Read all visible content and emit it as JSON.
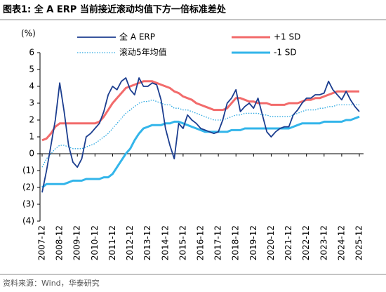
{
  "chart_data": {
    "type": "line",
    "title": "图表1:  全 A ERP 当前接近滚动均值下方一倍标准差处",
    "y_label": "(%)",
    "source": "资料来源：Wind，华泰研究",
    "x": [
      "2007-12",
      "2008-03",
      "2008-06",
      "2008-09",
      "2008-12",
      "2009-03",
      "2009-06",
      "2009-09",
      "2009-12",
      "2010-03",
      "2010-06",
      "2010-09",
      "2010-12",
      "2011-03",
      "2011-06",
      "2011-09",
      "2011-12",
      "2012-03",
      "2012-06",
      "2012-09",
      "2012-12",
      "2013-03",
      "2013-06",
      "2013-09",
      "2013-12",
      "2014-03",
      "2014-06",
      "2014-09",
      "2014-12",
      "2015-03",
      "2015-06",
      "2015-09",
      "2015-12",
      "2016-03",
      "2016-06",
      "2016-09",
      "2016-12",
      "2017-03",
      "2017-06",
      "2017-09",
      "2017-12",
      "2018-03",
      "2018-06",
      "2018-09",
      "2018-12",
      "2019-03",
      "2019-06",
      "2019-09",
      "2019-12",
      "2020-03",
      "2020-06",
      "2020-09",
      "2020-12",
      "2021-03",
      "2021-06",
      "2021-09",
      "2021-12",
      "2022-03",
      "2022-06",
      "2022-09",
      "2022-12",
      "2023-03",
      "2023-06",
      "2023-09",
      "2023-12",
      "2024-03",
      "2024-06",
      "2024-09",
      "2024-12",
      "2025-03",
      "2025-06",
      "2025-09",
      "2025-12"
    ],
    "xlim": [
      "2007-12",
      "2025-12"
    ],
    "xticks": [
      "2007-12",
      "2008-12",
      "2009-12",
      "2010-12",
      "2011-12",
      "2012-12",
      "2013-12",
      "2014-12",
      "2015-12",
      "2016-12",
      "2017-12",
      "2018-12",
      "2019-12",
      "2020-12",
      "2021-12",
      "2022-12",
      "2023-12",
      "2024-12",
      "2025-12"
    ],
    "ylim": [
      -4,
      6
    ],
    "yticks": [
      {
        "value": -4,
        "label": "(4)"
      },
      {
        "value": -3,
        "label": "(3)"
      },
      {
        "value": -2,
        "label": "(2)"
      },
      {
        "value": -1,
        "label": "(1)"
      },
      0,
      1,
      2,
      3,
      4,
      5,
      6
    ],
    "series": [
      {
        "name": "全 A ERP",
        "color": "#1b3d8f",
        "style": "solid",
        "values": [
          -2.3,
          -1.0,
          0.5,
          2.0,
          4.2,
          2.5,
          0.5,
          -0.5,
          -0.8,
          -0.3,
          1.0,
          1.2,
          1.5,
          1.8,
          2.5,
          3.5,
          4.0,
          3.8,
          4.3,
          4.5,
          3.8,
          3.5,
          4.5,
          4.0,
          4.0,
          4.2,
          4.1,
          3.2,
          1.5,
          0.5,
          -0.3,
          1.8,
          1.5,
          2.3,
          2.0,
          1.8,
          1.5,
          1.4,
          1.3,
          1.2,
          1.3,
          2.0,
          3.0,
          3.3,
          3.8,
          2.5,
          2.8,
          3.0,
          2.7,
          3.3,
          2.3,
          1.3,
          1.0,
          1.3,
          1.5,
          1.6,
          1.6,
          2.3,
          2.6,
          3.0,
          3.3,
          3.3,
          3.5,
          3.5,
          3.6,
          4.3,
          3.8,
          3.5,
          3.2,
          3.7,
          3.2,
          2.8,
          2.5
        ]
      },
      {
        "name": "+1 SD",
        "color": "#f26b6b",
        "style": "thick",
        "values": [
          0.8,
          0.9,
          1.2,
          1.6,
          1.8,
          1.8,
          1.8,
          1.8,
          1.8,
          1.8,
          1.8,
          1.8,
          1.8,
          1.9,
          2.2,
          2.6,
          3.0,
          3.3,
          3.6,
          3.9,
          4.0,
          4.1,
          4.2,
          4.3,
          4.3,
          4.3,
          4.2,
          4.1,
          4.0,
          3.9,
          3.7,
          3.6,
          3.4,
          3.3,
          3.2,
          3.0,
          2.9,
          2.8,
          2.7,
          2.6,
          2.6,
          2.6,
          2.7,
          3.0,
          3.3,
          3.3,
          3.2,
          3.1,
          3.1,
          3.0,
          3.0,
          3.0,
          2.9,
          2.9,
          2.9,
          2.9,
          3.0,
          3.0,
          3.0,
          3.1,
          3.2,
          3.2,
          3.3,
          3.3,
          3.4,
          3.5,
          3.6,
          3.7,
          3.7,
          3.7,
          3.7,
          3.7,
          3.7
        ]
      },
      {
        "name": "滚动5年均值",
        "color": "#29a7e1",
        "style": "dotted",
        "values": [
          -0.8,
          -0.3,
          0.0,
          0.3,
          0.5,
          0.5,
          0.4,
          0.3,
          0.3,
          0.3,
          0.4,
          0.5,
          0.6,
          0.8,
          1.0,
          1.2,
          1.5,
          1.8,
          2.1,
          2.4,
          2.6,
          2.8,
          3.0,
          3.1,
          3.1,
          3.2,
          3.1,
          3.0,
          2.9,
          2.9,
          2.7,
          2.7,
          2.6,
          2.6,
          2.5,
          2.4,
          2.3,
          2.2,
          2.1,
          2.0,
          2.0,
          2.0,
          2.1,
          2.2,
          2.3,
          2.3,
          2.4,
          2.4,
          2.4,
          2.4,
          2.3,
          2.3,
          2.2,
          2.2,
          2.2,
          2.2,
          2.2,
          2.3,
          2.4,
          2.5,
          2.6,
          2.6,
          2.6,
          2.7,
          2.7,
          2.8,
          2.8,
          2.9,
          2.9,
          2.9,
          2.9,
          2.9,
          2.9
        ]
      },
      {
        "name": "-1 SD",
        "color": "#33b5ea",
        "style": "thick",
        "values": [
          -2.0,
          -1.8,
          -1.8,
          -1.8,
          -1.8,
          -1.8,
          -1.7,
          -1.6,
          -1.6,
          -1.6,
          -1.5,
          -1.5,
          -1.5,
          -1.5,
          -1.4,
          -1.4,
          -1.2,
          -0.8,
          -0.4,
          0.0,
          0.3,
          0.8,
          1.2,
          1.5,
          1.6,
          1.7,
          1.7,
          1.7,
          1.8,
          1.8,
          1.9,
          1.9,
          1.8,
          1.7,
          1.6,
          1.5,
          1.4,
          1.3,
          1.3,
          1.3,
          1.3,
          1.3,
          1.3,
          1.4,
          1.4,
          1.4,
          1.5,
          1.5,
          1.5,
          1.5,
          1.5,
          1.5,
          1.5,
          1.5,
          1.5,
          1.5,
          1.5,
          1.6,
          1.7,
          1.8,
          1.8,
          1.8,
          1.8,
          1.8,
          1.9,
          1.9,
          1.9,
          1.9,
          1.9,
          2.0,
          2.0,
          2.1,
          2.2
        ]
      }
    ]
  }
}
